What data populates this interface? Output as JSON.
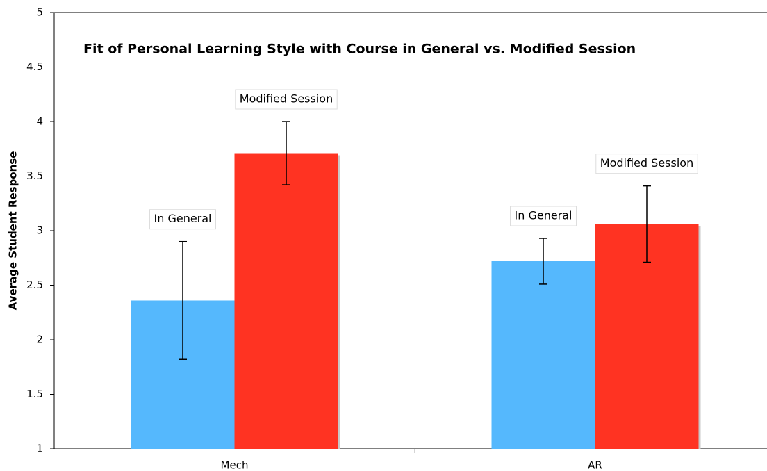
{
  "chart_data": {
    "type": "bar",
    "title": "Fit of Personal Learning Style with Course in General vs. Modified Session",
    "ylabel": "Average Student Response",
    "categories": [
      "Mech",
      "AR"
    ],
    "series": [
      {
        "name": "In General",
        "color": "#55b8fd",
        "values": [
          2.36,
          2.72
        ],
        "errors": [
          0.54,
          0.21
        ]
      },
      {
        "name": "Modified Session",
        "color": "#ff3322",
        "values": [
          3.71,
          3.06
        ],
        "errors": [
          0.29,
          0.35
        ]
      }
    ],
    "ylim": [
      1,
      5
    ],
    "yticks": [
      1,
      1.5,
      2,
      2.5,
      3,
      3.5,
      4,
      4.5,
      5
    ],
    "grid": false
  }
}
